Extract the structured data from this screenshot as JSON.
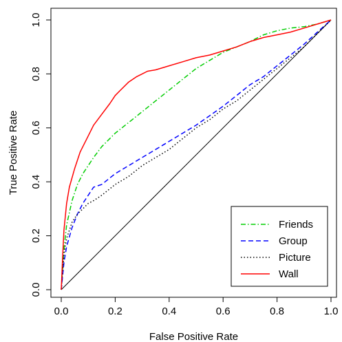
{
  "chart_data": {
    "type": "line",
    "title": "",
    "xlabel": "False Positive Rate",
    "ylabel": "True Positive Rate",
    "xlim": [
      0,
      1
    ],
    "ylim": [
      0,
      1
    ],
    "xticks": [
      "0.0",
      "0.2",
      "0.4",
      "0.6",
      "0.8",
      "1.0"
    ],
    "yticks": [
      "0.0",
      "0.2",
      "0.4",
      "0.6",
      "0.8",
      "1.0"
    ],
    "grid": false,
    "legend_position": "bottom-right",
    "reference_line": {
      "x": [
        0,
        1
      ],
      "y": [
        0,
        1
      ],
      "color": "#000000",
      "style": "solid"
    },
    "series": [
      {
        "name": "Friends",
        "color": "#00cd00",
        "style": "dashdot",
        "x": [
          0,
          0.01,
          0.02,
          0.04,
          0.06,
          0.08,
          0.1,
          0.12,
          0.15,
          0.2,
          0.25,
          0.3,
          0.35,
          0.4,
          0.45,
          0.5,
          0.55,
          0.6,
          0.65,
          0.7,
          0.75,
          0.8,
          0.85,
          0.9,
          0.95,
          1.0
        ],
        "y": [
          0,
          0.15,
          0.24,
          0.33,
          0.39,
          0.43,
          0.46,
          0.49,
          0.53,
          0.58,
          0.62,
          0.66,
          0.7,
          0.74,
          0.78,
          0.82,
          0.85,
          0.88,
          0.9,
          0.92,
          0.945,
          0.96,
          0.97,
          0.975,
          0.985,
          1.0
        ]
      },
      {
        "name": "Group",
        "color": "#0000ff",
        "style": "dashed",
        "x": [
          0,
          0.01,
          0.02,
          0.04,
          0.06,
          0.08,
          0.1,
          0.12,
          0.15,
          0.2,
          0.25,
          0.3,
          0.35,
          0.4,
          0.45,
          0.5,
          0.55,
          0.6,
          0.65,
          0.7,
          0.75,
          0.8,
          0.85,
          0.9,
          0.95,
          1.0
        ],
        "y": [
          0,
          0.1,
          0.16,
          0.23,
          0.28,
          0.32,
          0.35,
          0.38,
          0.39,
          0.43,
          0.46,
          0.49,
          0.52,
          0.55,
          0.58,
          0.61,
          0.645,
          0.68,
          0.72,
          0.76,
          0.79,
          0.83,
          0.87,
          0.91,
          0.955,
          1.0
        ]
      },
      {
        "name": "Picture",
        "color": "#000000",
        "style": "dotted",
        "x": [
          0,
          0.01,
          0.02,
          0.04,
          0.06,
          0.08,
          0.1,
          0.12,
          0.15,
          0.2,
          0.25,
          0.3,
          0.35,
          0.4,
          0.45,
          0.5,
          0.55,
          0.6,
          0.65,
          0.7,
          0.75,
          0.8,
          0.85,
          0.9,
          0.95,
          1.0
        ],
        "y": [
          0,
          0.13,
          0.19,
          0.25,
          0.28,
          0.3,
          0.32,
          0.33,
          0.35,
          0.39,
          0.42,
          0.46,
          0.49,
          0.52,
          0.56,
          0.6,
          0.63,
          0.67,
          0.7,
          0.74,
          0.78,
          0.82,
          0.86,
          0.9,
          0.95,
          1.0
        ]
      },
      {
        "name": "Wall",
        "color": "#ff0000",
        "style": "solid",
        "x": [
          0,
          0.005,
          0.01,
          0.02,
          0.03,
          0.05,
          0.07,
          0.1,
          0.12,
          0.15,
          0.18,
          0.2,
          0.22,
          0.25,
          0.28,
          0.3,
          0.32,
          0.35,
          0.4,
          0.45,
          0.5,
          0.55,
          0.6,
          0.65,
          0.7,
          0.75,
          0.8,
          0.85,
          0.9,
          0.95,
          1.0
        ],
        "y": [
          0,
          0.12,
          0.22,
          0.32,
          0.38,
          0.45,
          0.51,
          0.57,
          0.61,
          0.65,
          0.69,
          0.72,
          0.74,
          0.77,
          0.79,
          0.8,
          0.81,
          0.815,
          0.83,
          0.845,
          0.86,
          0.87,
          0.885,
          0.9,
          0.92,
          0.935,
          0.945,
          0.955,
          0.97,
          0.985,
          1.0
        ]
      }
    ]
  }
}
